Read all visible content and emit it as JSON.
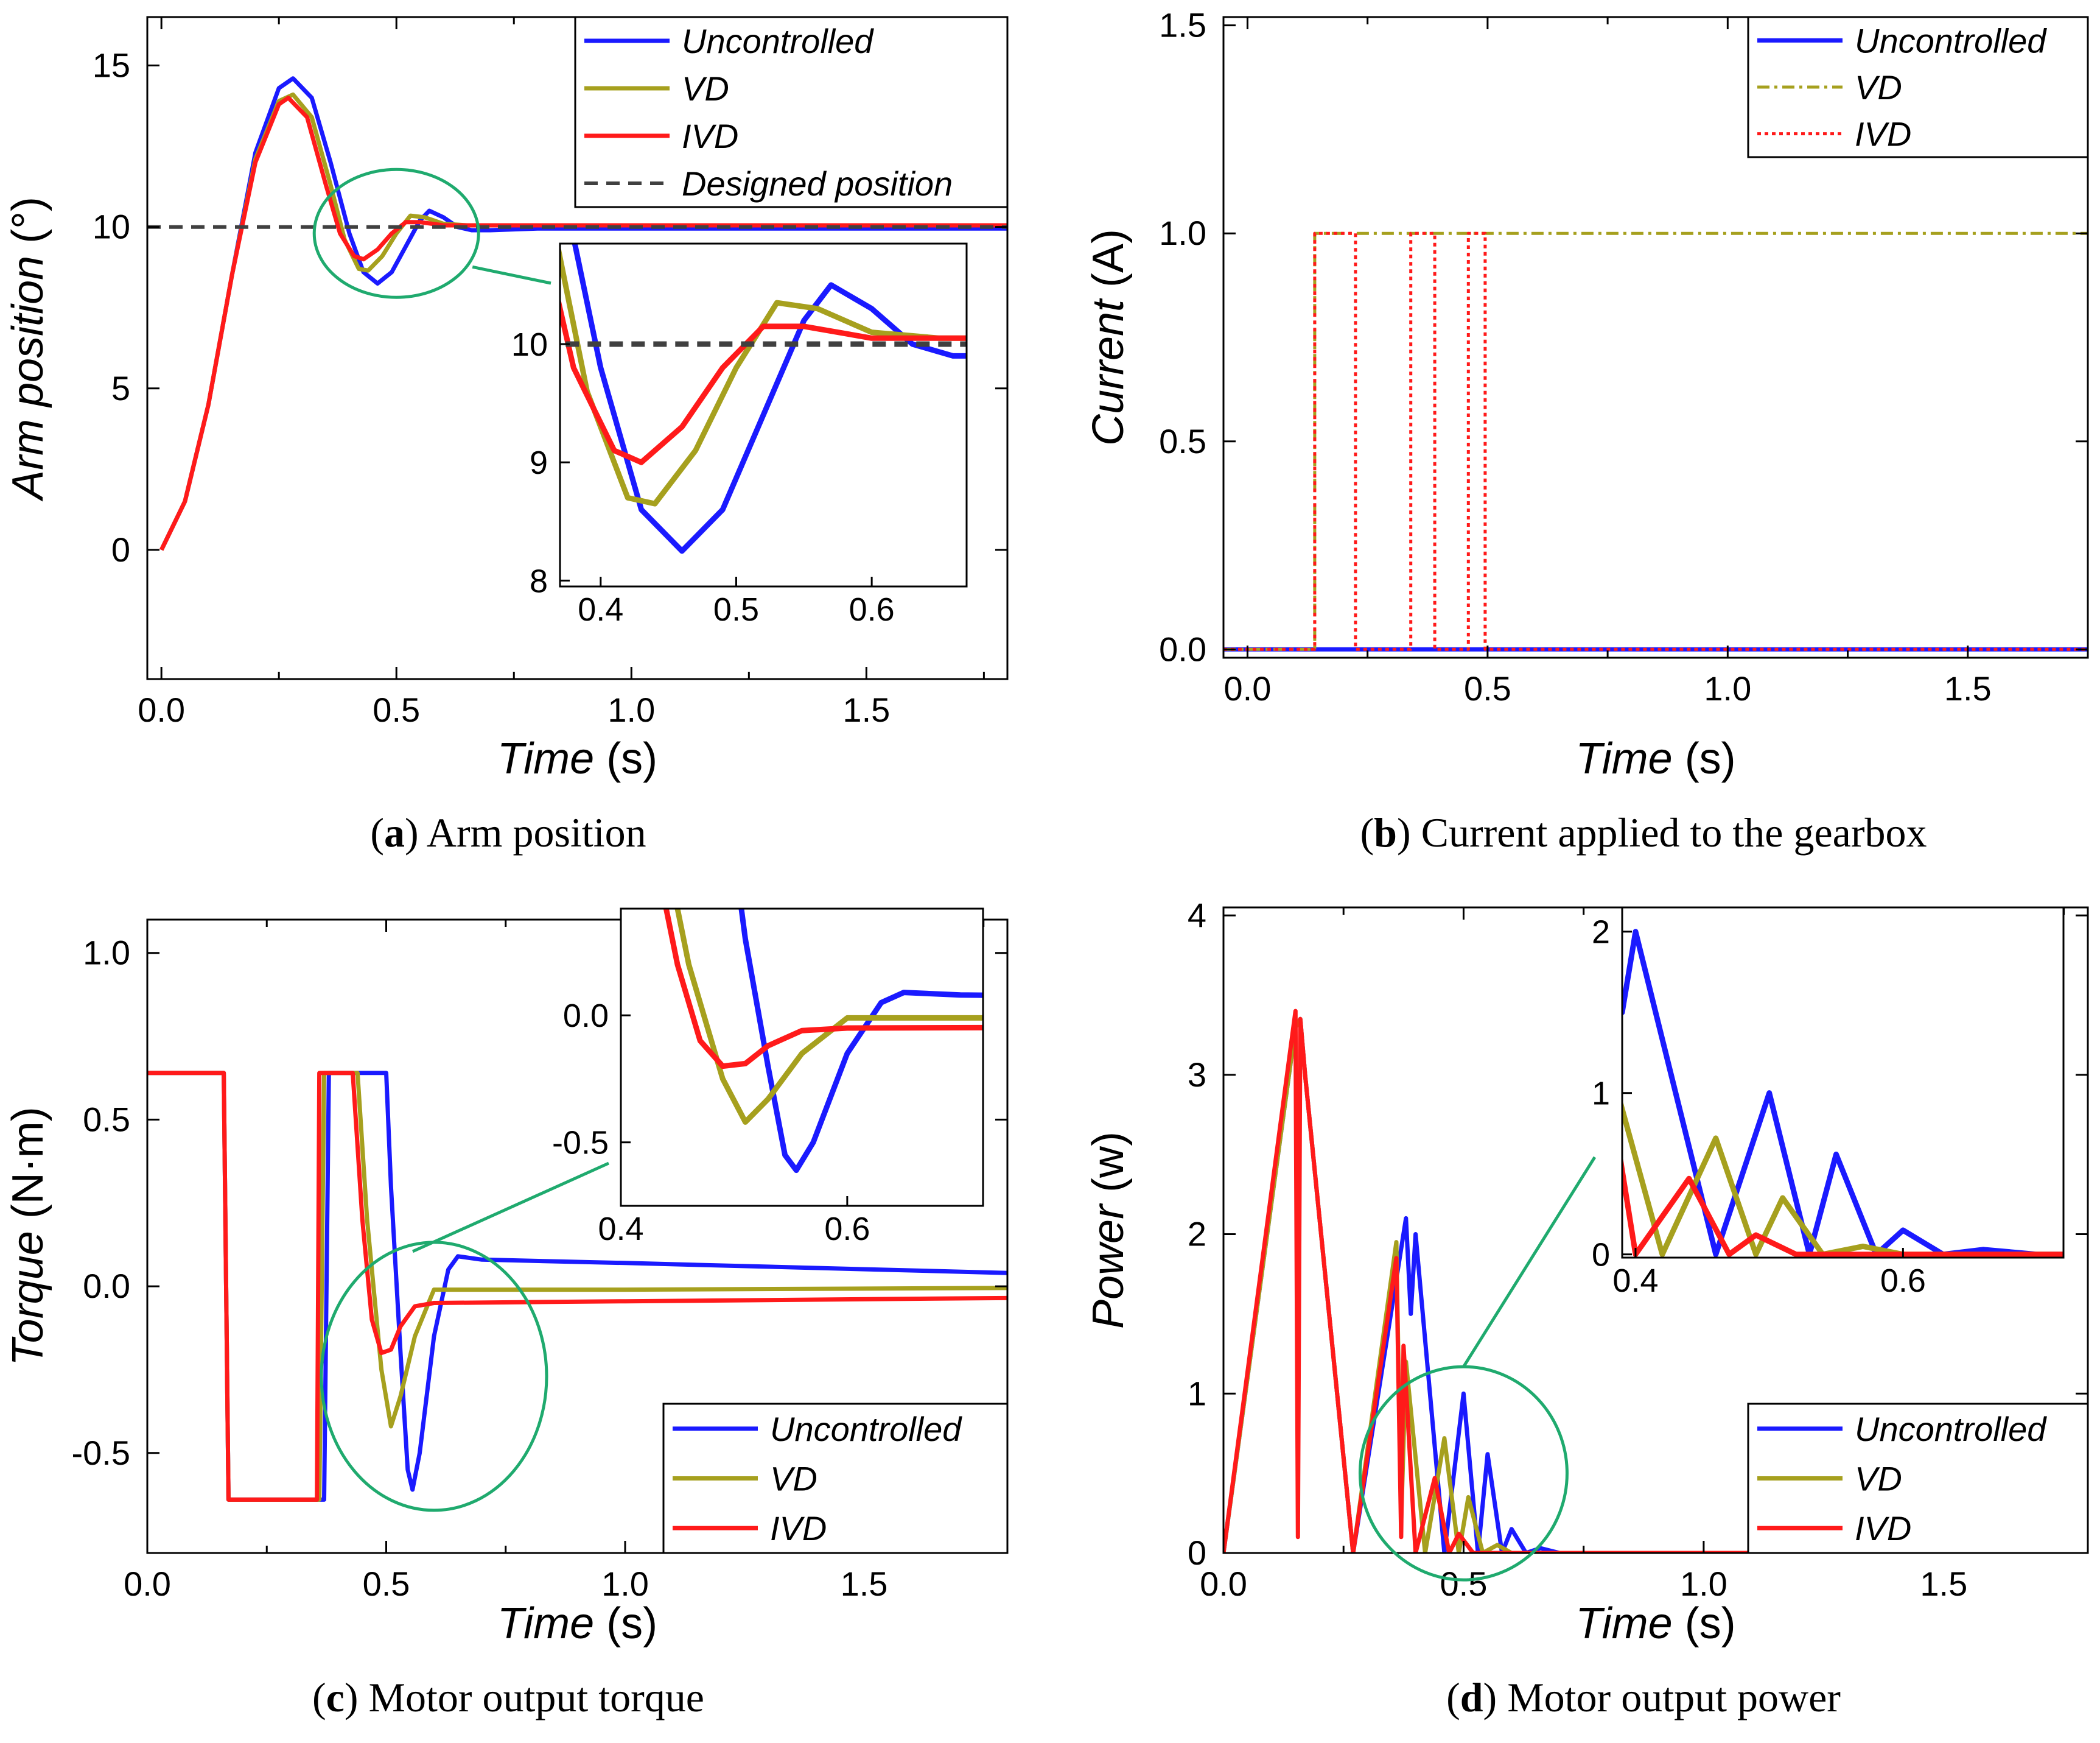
{
  "colors": {
    "uncontrolled": "#1a1aff",
    "vd": "#a6a01e",
    "ivd": "#ff1a1a",
    "designed": "#404040",
    "zoom_circle": "#1faa6e"
  },
  "chart_data": [
    {
      "id": "a",
      "type": "line",
      "caption_letter": "a",
      "caption_text": ") Arm position",
      "caption_open": "(",
      "xlabel": "Time",
      "xlabel_unit": " (s)",
      "ylabel": "Arm position",
      "ylabel_unit": " (°)",
      "xlim": [
        -0.03,
        1.8
      ],
      "ylim": [
        -4,
        16.5
      ],
      "xticks": [
        "0.0",
        "0.5",
        "1.0",
        "1.5"
      ],
      "xtick_values": [
        0,
        0.5,
        1.0,
        1.5
      ],
      "yticks": [
        "0",
        "5",
        "10",
        "15"
      ],
      "ytick_values": [
        0,
        5,
        10,
        15
      ],
      "legend": [
        "Uncontrolled",
        "VD",
        "IVD",
        "Designed position"
      ],
      "series": [
        {
          "name": "Uncontrolled",
          "key": "uncontrolled",
          "points": [
            [
              0,
              0
            ],
            [
              0.05,
              1.5
            ],
            [
              0.1,
              4.5
            ],
            [
              0.15,
              8.5
            ],
            [
              0.2,
              12.3
            ],
            [
              0.25,
              14.3
            ],
            [
              0.28,
              14.6
            ],
            [
              0.32,
              14.0
            ],
            [
              0.36,
              12.0
            ],
            [
              0.4,
              9.8
            ],
            [
              0.43,
              8.6
            ],
            [
              0.46,
              8.25
            ],
            [
              0.49,
              8.6
            ],
            [
              0.52,
              9.4
            ],
            [
              0.55,
              10.2
            ],
            [
              0.57,
              10.5
            ],
            [
              0.6,
              10.3
            ],
            [
              0.63,
              10.0
            ],
            [
              0.66,
              9.9
            ],
            [
              0.7,
              9.9
            ],
            [
              0.8,
              9.95
            ],
            [
              1.0,
              9.95
            ],
            [
              1.8,
              9.95
            ]
          ]
        },
        {
          "name": "VD",
          "key": "vd",
          "points": [
            [
              0,
              0
            ],
            [
              0.05,
              1.5
            ],
            [
              0.1,
              4.5
            ],
            [
              0.15,
              8.5
            ],
            [
              0.2,
              12.1
            ],
            [
              0.25,
              13.9
            ],
            [
              0.28,
              14.1
            ],
            [
              0.32,
              13.4
            ],
            [
              0.36,
              11.3
            ],
            [
              0.39,
              9.6
            ],
            [
              0.42,
              8.7
            ],
            [
              0.44,
              8.65
            ],
            [
              0.47,
              9.1
            ],
            [
              0.5,
              9.8
            ],
            [
              0.53,
              10.35
            ],
            [
              0.56,
              10.3
            ],
            [
              0.6,
              10.1
            ],
            [
              0.65,
              10.05
            ],
            [
              1.8,
              10.05
            ]
          ]
        },
        {
          "name": "IVD",
          "key": "ivd",
          "points": [
            [
              0,
              0
            ],
            [
              0.05,
              1.5
            ],
            [
              0.1,
              4.5
            ],
            [
              0.15,
              8.5
            ],
            [
              0.2,
              12.0
            ],
            [
              0.25,
              13.8
            ],
            [
              0.27,
              14.0
            ],
            [
              0.31,
              13.4
            ],
            [
              0.35,
              11.3
            ],
            [
              0.38,
              9.8
            ],
            [
              0.41,
              9.1
            ],
            [
              0.43,
              9.0
            ],
            [
              0.46,
              9.3
            ],
            [
              0.49,
              9.8
            ],
            [
              0.52,
              10.15
            ],
            [
              0.55,
              10.15
            ],
            [
              0.6,
              10.05
            ],
            [
              0.7,
              10.05
            ],
            [
              1.8,
              10.05
            ]
          ]
        },
        {
          "name": "Designed position",
          "key": "designed",
          "dashed": true,
          "points": [
            [
              -0.03,
              10
            ],
            [
              1.8,
              10
            ]
          ]
        }
      ],
      "inset": {
        "xlim": [
          0.37,
          0.67
        ],
        "ylim": [
          7.95,
          10.85
        ],
        "xticks": [
          "0.4",
          "0.5",
          "0.6"
        ],
        "xtick_values": [
          0.4,
          0.5,
          0.6
        ],
        "yticks": [
          "8",
          "9",
          "10"
        ],
        "ytick_values": [
          8,
          9,
          10
        ]
      },
      "zoom": {
        "cx": 0.5,
        "cy": 9.8
      }
    },
    {
      "id": "b",
      "type": "line",
      "caption_letter": "b",
      "caption_text": ") Current applied to the gearbox",
      "caption_open": "(",
      "xlabel": "Time",
      "xlabel_unit": " (s)",
      "ylabel": "Current",
      "ylabel_unit": " (A)",
      "xlim": [
        -0.05,
        1.75
      ],
      "ylim": [
        -0.02,
        1.52
      ],
      "xticks": [
        "0.0",
        "0.5",
        "1.0",
        "1.5"
      ],
      "xtick_values": [
        0,
        0.5,
        1.0,
        1.5
      ],
      "yticks": [
        "0.0",
        "0.5",
        "1.0",
        "1.5"
      ],
      "ytick_values": [
        0,
        0.5,
        1.0,
        1.5
      ],
      "legend": [
        "Uncontrolled",
        "VD",
        "IVD"
      ],
      "series": [
        {
          "name": "Uncontrolled",
          "key": "uncontrolled",
          "points": [
            [
              -0.05,
              0
            ],
            [
              1.75,
              0
            ]
          ]
        },
        {
          "name": "VD",
          "key": "vd",
          "dashdot": true,
          "points": [
            [
              -0.05,
              0
            ],
            [
              0.14,
              0
            ],
            [
              0.14,
              1
            ],
            [
              1.75,
              1
            ]
          ]
        },
        {
          "name": "IVD",
          "key": "ivd",
          "dotted": true,
          "points": [
            [
              -0.05,
              0
            ],
            [
              0.14,
              0
            ],
            [
              0.14,
              1
            ],
            [
              0.225,
              1
            ],
            [
              0.225,
              0
            ],
            [
              0.34,
              0
            ],
            [
              0.34,
              1
            ],
            [
              0.39,
              1
            ],
            [
              0.39,
              0
            ],
            [
              0.46,
              0
            ],
            [
              0.46,
              1
            ],
            [
              0.495,
              1
            ],
            [
              0.495,
              0
            ],
            [
              1.75,
              0
            ]
          ]
        }
      ]
    },
    {
      "id": "c",
      "type": "line",
      "caption_letter": "c",
      "caption_text": ") Motor output torque",
      "caption_open": "(",
      "xlabel": "Time",
      "xlabel_unit": " (s)",
      "ylabel": "Torque",
      "ylabel_unit": " (N·m)",
      "xlim": [
        0,
        1.8
      ],
      "ylim": [
        -0.8,
        1.1
      ],
      "xticks": [
        "0.0",
        "0.5",
        "1.0",
        "1.5"
      ],
      "xtick_values": [
        0,
        0.5,
        1.0,
        1.5
      ],
      "yticks": [
        "-0.5",
        "0.0",
        "0.5",
        "1.0"
      ],
      "ytick_values": [
        -0.5,
        0,
        0.5,
        1.0
      ],
      "legend": [
        "Uncontrolled",
        "VD",
        "IVD"
      ],
      "series": [
        {
          "name": "Uncontrolled",
          "key": "uncontrolled",
          "points": [
            [
              0,
              0.64
            ],
            [
              0.16,
              0.64
            ],
            [
              0.17,
              -0.64
            ],
            [
              0.36,
              -0.64
            ],
            [
              0.37,
              -0.64
            ],
            [
              0.38,
              0.64
            ],
            [
              0.5,
              0.64
            ],
            [
              0.51,
              0.3
            ],
            [
              0.53,
              -0.2
            ],
            [
              0.545,
              -0.55
            ],
            [
              0.555,
              -0.61
            ],
            [
              0.57,
              -0.5
            ],
            [
              0.6,
              -0.15
            ],
            [
              0.63,
              0.05
            ],
            [
              0.65,
              0.09
            ],
            [
              0.7,
              0.08
            ],
            [
              1.0,
              0.07
            ],
            [
              1.8,
              0.04
            ]
          ]
        },
        {
          "name": "VD",
          "key": "vd",
          "points": [
            [
              0,
              0.64
            ],
            [
              0.16,
              0.64
            ],
            [
              0.17,
              -0.64
            ],
            [
              0.36,
              -0.64
            ],
            [
              0.37,
              0.64
            ],
            [
              0.44,
              0.64
            ],
            [
              0.46,
              0.2
            ],
            [
              0.49,
              -0.25
            ],
            [
              0.51,
              -0.42
            ],
            [
              0.53,
              -0.33
            ],
            [
              0.56,
              -0.15
            ],
            [
              0.6,
              -0.01
            ],
            [
              0.65,
              -0.01
            ],
            [
              1.0,
              -0.01
            ],
            [
              1.8,
              -0.005
            ]
          ]
        },
        {
          "name": "IVD",
          "key": "ivd",
          "points": [
            [
              0,
              0.64
            ],
            [
              0.16,
              0.64
            ],
            [
              0.17,
              -0.64
            ],
            [
              0.355,
              -0.64
            ],
            [
              0.36,
              0.64
            ],
            [
              0.43,
              0.64
            ],
            [
              0.45,
              0.2
            ],
            [
              0.47,
              -0.1
            ],
            [
              0.49,
              -0.2
            ],
            [
              0.51,
              -0.19
            ],
            [
              0.53,
              -0.12
            ],
            [
              0.56,
              -0.06
            ],
            [
              0.6,
              -0.05
            ],
            [
              1.0,
              -0.045
            ],
            [
              1.8,
              -0.035
            ]
          ]
        }
      ],
      "inset": {
        "xlim": [
          0.4,
          0.72
        ],
        "ylim": [
          -0.75,
          0.42
        ],
        "xticks": [
          "0.4",
          "0.6"
        ],
        "xtick_values": [
          0.4,
          0.6
        ],
        "yticks": [
          "-0.5",
          "0.0"
        ],
        "ytick_values": [
          -0.5,
          0
        ]
      },
      "zoom": {
        "cx": 0.6,
        "cy": -0.27
      }
    },
    {
      "id": "d",
      "type": "line",
      "caption_letter": "d",
      "caption_text": ") Motor output power",
      "caption_open": "(",
      "xlabel": "Time",
      "xlabel_unit": " (s)",
      "ylabel": "Power",
      "ylabel_unit": " (w)",
      "xlim": [
        0,
        1.8
      ],
      "ylim": [
        0,
        4.05
      ],
      "xticks": [
        "0.0",
        "0.5",
        "1.0",
        "1.5"
      ],
      "xtick_values": [
        0,
        0.5,
        1.0,
        1.5
      ],
      "yticks": [
        "0",
        "1",
        "2",
        "3",
        "4"
      ],
      "ytick_values": [
        0,
        1,
        2,
        3,
        4
      ],
      "legend": [
        "Uncontrolled",
        "VD",
        "IVD"
      ],
      "series": [
        {
          "name": "Uncontrolled",
          "key": "uncontrolled",
          "points": [
            [
              0,
              0
            ],
            [
              0.15,
              3.3
            ],
            [
              0.16,
              3.35
            ],
            [
              0.17,
              3.0
            ],
            [
              0.27,
              0
            ],
            [
              0.38,
              2.1
            ],
            [
              0.39,
              1.5
            ],
            [
              0.4,
              2.0
            ],
            [
              0.46,
              0
            ],
            [
              0.5,
              1.0
            ],
            [
              0.53,
              0
            ],
            [
              0.55,
              0.62
            ],
            [
              0.58,
              0
            ],
            [
              0.6,
              0.15
            ],
            [
              0.63,
              0
            ],
            [
              0.66,
              0.03
            ],
            [
              0.7,
              0
            ],
            [
              1.8,
              0
            ]
          ]
        },
        {
          "name": "VD",
          "key": "vd",
          "points": [
            [
              0,
              0
            ],
            [
              0.15,
              3.3
            ],
            [
              0.16,
              3.35
            ],
            [
              0.17,
              3.0
            ],
            [
              0.27,
              0
            ],
            [
              0.36,
              1.95
            ],
            [
              0.37,
              0.2
            ],
            [
              0.38,
              1.2
            ],
            [
              0.42,
              0
            ],
            [
              0.46,
              0.72
            ],
            [
              0.49,
              0
            ],
            [
              0.51,
              0.35
            ],
            [
              0.54,
              0
            ],
            [
              0.57,
              0.05
            ],
            [
              0.6,
              0
            ],
            [
              1.8,
              0
            ]
          ]
        },
        {
          "name": "IVD",
          "key": "ivd",
          "points": [
            [
              0,
              0
            ],
            [
              0.15,
              3.4
            ],
            [
              0.155,
              0.1
            ],
            [
              0.16,
              3.35
            ],
            [
              0.17,
              3.0
            ],
            [
              0.27,
              0
            ],
            [
              0.36,
              1.85
            ],
            [
              0.37,
              0.1
            ],
            [
              0.375,
              1.3
            ],
            [
              0.4,
              0
            ],
            [
              0.44,
              0.47
            ],
            [
              0.47,
              0
            ],
            [
              0.49,
              0.12
            ],
            [
              0.52,
              0
            ],
            [
              1.8,
              0
            ]
          ]
        }
      ],
      "inset": {
        "xlim": [
          0.39,
          0.72
        ],
        "ylim": [
          -0.02,
          2.15
        ],
        "xticks": [
          "0.4",
          "0.6"
        ],
        "xtick_values": [
          0.4,
          0.6
        ],
        "yticks": [
          "0",
          "1",
          "2"
        ],
        "ytick_values": [
          0,
          1,
          2
        ]
      },
      "zoom": {
        "cx": 0.5,
        "cy": 0.5
      }
    }
  ]
}
